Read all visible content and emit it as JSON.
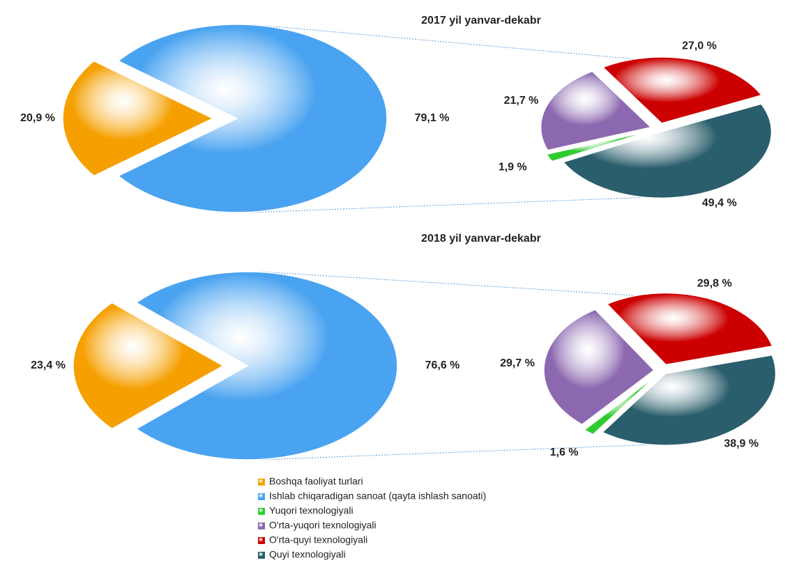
{
  "chart_data": [
    {
      "type": "pie-of-pie",
      "title": "2017 yil yanvar-dekabr",
      "values": [
        20.9,
        79.1
      ],
      "value_labels": [
        "20,9 %",
        "79,1 %"
      ],
      "detail_values": [
        49.4,
        1.9,
        21.7,
        27.0
      ],
      "detail_value_labels": [
        "49,4 %",
        "1,9 %",
        "21,7 %",
        "27,0 %"
      ]
    },
    {
      "type": "pie-of-pie",
      "title": "2018 yil yanvar-dekabr",
      "values": [
        23.4,
        76.6
      ],
      "value_labels": [
        "23,4 %",
        "76,6 %"
      ],
      "detail_values": [
        38.9,
        1.6,
        29.7,
        29.8
      ],
      "detail_value_labels": [
        "38,9 %",
        "1,6 %",
        "29,7 %",
        "29,8 %"
      ]
    }
  ],
  "legend": {
    "entries": [
      {
        "name": "Boshqa faoliyat turlari",
        "color": "#f5a000"
      },
      {
        "name": "Ishlab chiqaradigan sanoat (qayta ishlash sanoati)",
        "color": "#4aa3f0"
      },
      {
        "name": "Quyi texnologiyali",
        "color": "#2a5e6c"
      },
      {
        "name": "Yuqori texnologiyali",
        "color": "#2fcc2f"
      },
      {
        "name": "O'rta-yuqori texnologiyali",
        "color": "#8c68b0"
      },
      {
        "name": "O'rta-quyi texnologiyali",
        "color": "#cc0000"
      }
    ]
  }
}
